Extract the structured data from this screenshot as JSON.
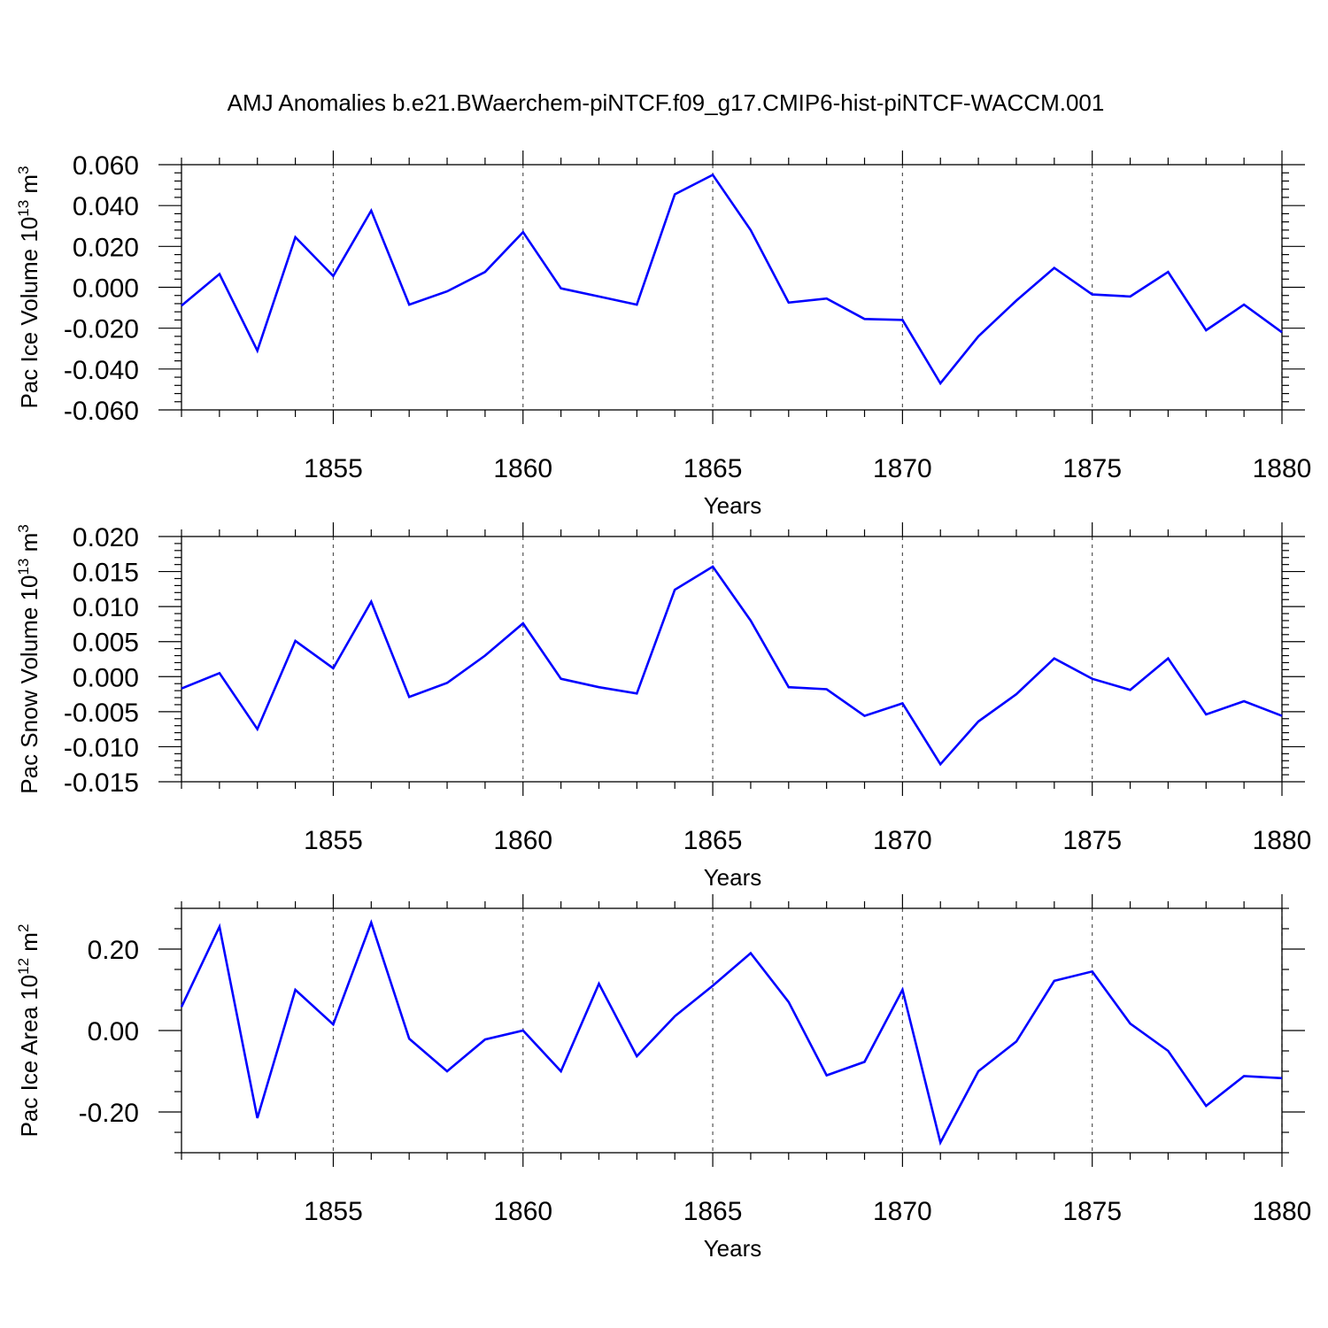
{
  "figure": {
    "title": "AMJ Anomalies b.e21.BWaerchem-piNTCF.f09_g17.CMIP6-hist-piNTCF-WACCM.001",
    "series_color": "#0000ff"
  },
  "chart_data": [
    {
      "type": "line",
      "ylabel": "Pac Ice Volume 10",
      "ylabel_sup": "13",
      "ylabel_unit": " m",
      "ylabel_unit_sup": "3",
      "xlabel": "Years",
      "xlim": [
        1851,
        1880
      ],
      "ylim": [
        -0.06,
        0.06
      ],
      "x_ticks": [
        1855,
        1860,
        1865,
        1870,
        1875,
        1880
      ],
      "x_tick_labels": [
        "1855",
        "1860",
        "1865",
        "1870",
        "1875",
        "1880"
      ],
      "y_ticks": [
        -0.06,
        -0.04,
        -0.02,
        0.0,
        0.02,
        0.04,
        0.06
      ],
      "y_tick_labels": [
        "-0.060",
        "-0.040",
        "-0.020",
        "0.000",
        "0.020",
        "0.040",
        "0.060"
      ],
      "y_minor_step": 0.004,
      "grid": "vertical dashed at major x ticks",
      "x": [
        1851,
        1852,
        1853,
        1854,
        1855,
        1856,
        1857,
        1858,
        1859,
        1860,
        1861,
        1862,
        1863,
        1864,
        1865,
        1866,
        1867,
        1868,
        1869,
        1870,
        1871,
        1872,
        1873,
        1874,
        1875,
        1876,
        1877,
        1878,
        1879,
        1880
      ],
      "values": [
        -0.009,
        0.0065,
        -0.031,
        0.0245,
        0.0055,
        0.0375,
        -0.0085,
        -0.002,
        0.0075,
        0.027,
        -0.0005,
        -0.0045,
        -0.0085,
        0.0455,
        0.055,
        0.028,
        -0.0075,
        -0.0055,
        -0.0155,
        -0.016,
        -0.047,
        -0.024,
        -0.0065,
        0.0095,
        -0.0035,
        -0.0045,
        0.0075,
        -0.021,
        -0.0085,
        -0.022
      ]
    },
    {
      "type": "line",
      "ylabel": "Pac Snow Volume 10",
      "ylabel_sup": "13",
      "ylabel_unit": " m",
      "ylabel_unit_sup": "3",
      "xlabel": "Years",
      "xlim": [
        1851,
        1880
      ],
      "ylim": [
        -0.015,
        0.02
      ],
      "x_ticks": [
        1855,
        1860,
        1865,
        1870,
        1875,
        1880
      ],
      "x_tick_labels": [
        "1855",
        "1860",
        "1865",
        "1870",
        "1875",
        "1880"
      ],
      "y_ticks": [
        -0.015,
        -0.01,
        -0.005,
        0.0,
        0.005,
        0.01,
        0.015,
        0.02
      ],
      "y_tick_labels": [
        "-0.015",
        "-0.010",
        "-0.005",
        "0.000",
        "0.005",
        "0.010",
        "0.015",
        "0.020"
      ],
      "y_minor_step": 0.001,
      "grid": "vertical dashed at major x ticks",
      "x": [
        1851,
        1852,
        1853,
        1854,
        1855,
        1856,
        1857,
        1858,
        1859,
        1860,
        1861,
        1862,
        1863,
        1864,
        1865,
        1866,
        1867,
        1868,
        1869,
        1870,
        1871,
        1872,
        1873,
        1874,
        1875,
        1876,
        1877,
        1878,
        1879,
        1880
      ],
      "values": [
        -0.0017,
        0.0005,
        -0.0075,
        0.0051,
        0.0012,
        0.0107,
        -0.0029,
        -0.0009,
        0.003,
        0.0076,
        -0.0003,
        -0.0015,
        -0.0024,
        0.0124,
        0.0157,
        0.008,
        -0.0015,
        -0.0018,
        -0.0056,
        -0.0038,
        -0.0125,
        -0.0064,
        -0.0025,
        0.0026,
        -0.0003,
        -0.0019,
        0.0026,
        -0.0054,
        -0.0035,
        -0.0056
      ]
    },
    {
      "type": "line",
      "ylabel": "Pac Ice Area 10",
      "ylabel_sup": "12",
      "ylabel_unit": " m",
      "ylabel_unit_sup": "2",
      "xlabel": "Years",
      "xlim": [
        1851,
        1880
      ],
      "ylim": [
        -0.3,
        0.3
      ],
      "x_ticks": [
        1855,
        1860,
        1865,
        1870,
        1875,
        1880
      ],
      "x_tick_labels": [
        "1855",
        "1860",
        "1865",
        "1870",
        "1875",
        "1880"
      ],
      "y_ticks": [
        -0.2,
        0.0,
        0.2
      ],
      "y_tick_labels": [
        "-0.20",
        "0.00",
        "0.20"
      ],
      "y_minor_step": 0.05,
      "grid": "vertical dashed at major x ticks",
      "x": [
        1851,
        1852,
        1853,
        1854,
        1855,
        1856,
        1857,
        1858,
        1859,
        1860,
        1861,
        1862,
        1863,
        1864,
        1865,
        1866,
        1867,
        1868,
        1869,
        1870,
        1871,
        1872,
        1873,
        1874,
        1875,
        1876,
        1877,
        1878,
        1879,
        1880
      ],
      "values": [
        0.058,
        0.255,
        -0.215,
        0.1,
        0.015,
        0.265,
        -0.02,
        -0.1,
        -0.022,
        0.0,
        -0.1,
        0.115,
        -0.063,
        0.035,
        0.11,
        0.19,
        0.07,
        -0.11,
        -0.077,
        0.1,
        -0.275,
        -0.1,
        -0.027,
        0.122,
        0.145,
        0.017,
        -0.05,
        -0.185,
        -0.112,
        -0.117
      ]
    }
  ]
}
